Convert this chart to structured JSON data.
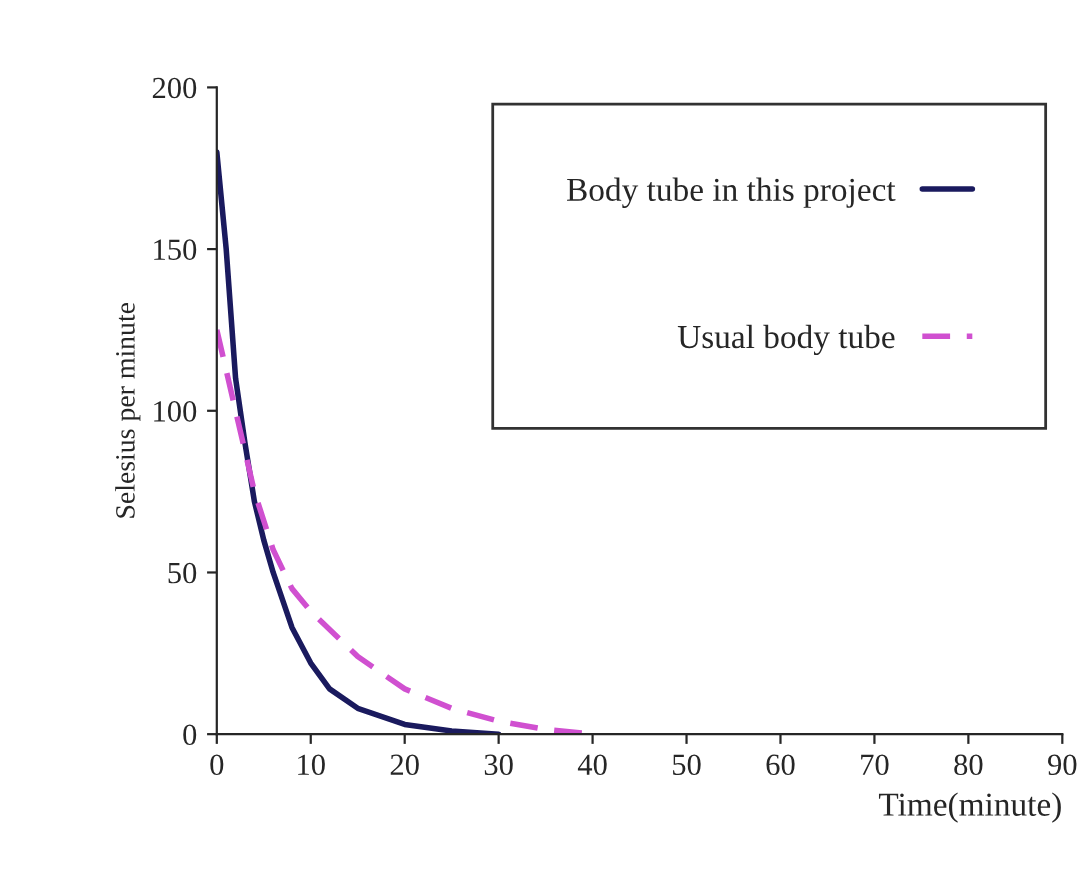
{
  "chart_data": {
    "type": "line",
    "xlabel": "Time(minute)",
    "ylabel": "Selesius per minute",
    "xlim": [
      0,
      90
    ],
    "xticks": [
      0,
      10,
      20,
      30,
      40,
      50,
      60,
      70,
      80,
      90
    ],
    "ylim": [
      0,
      200
    ],
    "yticks": [
      0,
      50,
      100,
      150,
      200
    ],
    "grid": false,
    "legend": "top right",
    "series": [
      {
        "name": "Body tube in this project",
        "color": "#1a1a5e",
        "line_style": "solid",
        "x": [
          0,
          1,
          2,
          3,
          4,
          5,
          6,
          8,
          10,
          12,
          15,
          20,
          25,
          30
        ],
        "values": [
          180,
          150,
          110,
          90,
          72,
          60,
          50,
          33,
          22,
          14,
          8,
          3,
          1,
          0
        ]
      },
      {
        "name": "Usual body tube",
        "color": "#d050d0",
        "line_style": "dashed",
        "x": [
          0,
          2,
          4,
          6,
          8,
          10,
          15,
          20,
          25,
          30,
          35,
          40
        ],
        "values": [
          125,
          100,
          75,
          57,
          45,
          38,
          24,
          14,
          8,
          4,
          1.5,
          0
        ]
      }
    ]
  }
}
